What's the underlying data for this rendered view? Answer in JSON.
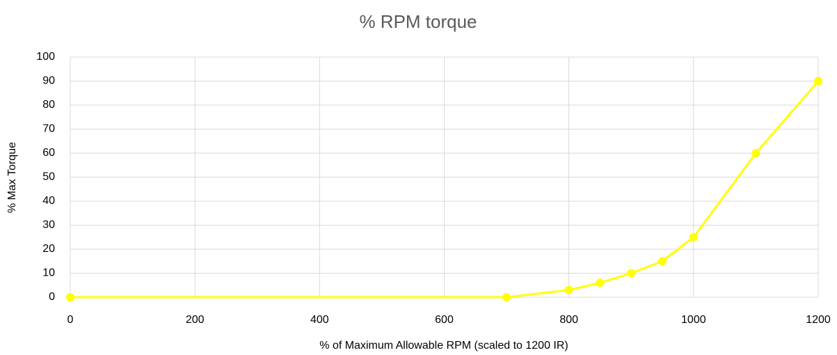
{
  "chart_data": {
    "type": "line",
    "title": "% RPM torque",
    "xlabel": "% of Maximum Allowable RPM (scaled to 1200 IR)",
    "ylabel": "% Max Torque",
    "x": [
      0,
      700,
      800,
      850,
      900,
      950,
      1000,
      1100,
      1200
    ],
    "series": [
      {
        "color": "#ffff00",
        "values": [
          0,
          0,
          3,
          6,
          10,
          15,
          25,
          60,
          90
        ]
      }
    ],
    "xlim": [
      0,
      1200
    ],
    "xticks": [
      0,
      200,
      400,
      600,
      800,
      1000,
      1200
    ],
    "ylim": [
      0,
      100
    ],
    "yticks": [
      0,
      10,
      20,
      30,
      40,
      50,
      60,
      70,
      80,
      90,
      100
    ],
    "grid": true,
    "markers": true
  }
}
